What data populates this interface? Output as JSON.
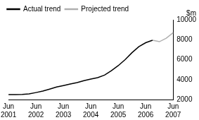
{
  "chart_data": {
    "type": "line",
    "ylabel": "$m",
    "categories": [
      "Jun 2001",
      null,
      null,
      null,
      "Jun 2002",
      null,
      null,
      null,
      "Jun 2003",
      null,
      null,
      null,
      "Jun 2004",
      null,
      null,
      null,
      "Jun 2005",
      null,
      null,
      null,
      "Jun 2006",
      null,
      null,
      null,
      "Jun 2007"
    ],
    "series": [
      {
        "name": "Actual trend",
        "color": "#000000",
        "values": [
          2500,
          2500,
          2520,
          2560,
          2700,
          2850,
          3050,
          3250,
          3400,
          3550,
          3700,
          3900,
          4050,
          4200,
          4450,
          4900,
          5400,
          6000,
          6700,
          7300,
          7700,
          7950,
          null,
          null,
          null
        ]
      },
      {
        "name": "Projected trend",
        "color": "#b0b0b0",
        "values": [
          null,
          null,
          null,
          null,
          null,
          null,
          null,
          null,
          null,
          null,
          null,
          null,
          null,
          null,
          null,
          null,
          null,
          null,
          null,
          null,
          null,
          7950,
          7800,
          8150,
          8700
        ]
      }
    ],
    "ylim": [
      2000,
      10000
    ],
    "yticks": [
      2000,
      4000,
      6000,
      8000,
      10000
    ],
    "grid": false,
    "legend": "top left"
  }
}
